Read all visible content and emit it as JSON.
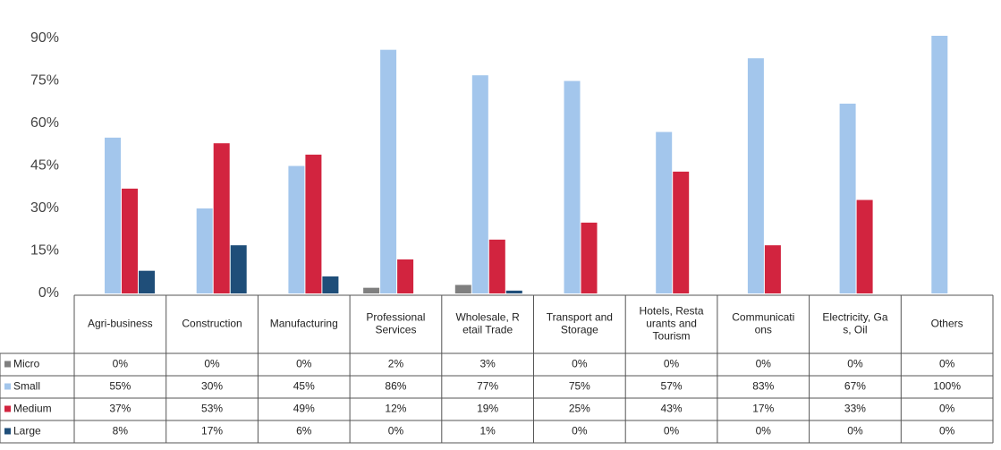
{
  "chart_data": {
    "type": "bar",
    "categories": [
      "Agri-business",
      "Construction",
      "Manufacturing",
      "Professional\nServices",
      "Wholesale, R\netail Trade",
      "Transport and\nStorage",
      "Hotels, Resta\nurants and\nTourism",
      "Communicati\nons",
      "Electricity, Ga\ns, Oil",
      "Others"
    ],
    "series": [
      {
        "name": "Micro",
        "color": "#7f7f7f",
        "values": [
          0,
          0,
          0,
          2,
          3,
          0,
          0,
          0,
          0,
          0
        ],
        "value_labels": [
          "0%",
          "0%",
          "0%",
          "2%",
          "3%",
          "0%",
          "0%",
          "0%",
          "0%",
          "0%"
        ]
      },
      {
        "name": "Small",
        "color": "#a3c6ec",
        "values": [
          55,
          30,
          45,
          86,
          77,
          75,
          57,
          83,
          67,
          100
        ],
        "value_labels": [
          "55%",
          "30%",
          "45%",
          "86%",
          "77%",
          "75%",
          "57%",
          "83%",
          "67%",
          "100%"
        ]
      },
      {
        "name": "Medium",
        "color": "#d2243f",
        "values": [
          37,
          53,
          49,
          12,
          19,
          25,
          43,
          17,
          33,
          0
        ],
        "value_labels": [
          "37%",
          "53%",
          "49%",
          "12%",
          "19%",
          "25%",
          "43%",
          "17%",
          "33%",
          "0%"
        ]
      },
      {
        "name": "Large",
        "color": "#1f4e79",
        "values": [
          8,
          17,
          6,
          0,
          1,
          0,
          0,
          0,
          0,
          0
        ],
        "value_labels": [
          "8%",
          "17%",
          "6%",
          "0%",
          "1%",
          "0%",
          "0%",
          "0%",
          "0%",
          "0%"
        ]
      }
    ],
    "ylim": [
      0,
      90
    ],
    "yticks": [
      {
        "value": 0,
        "label": "0%"
      },
      {
        "value": 15,
        "label": "15%"
      },
      {
        "value": 30,
        "label": "30%"
      },
      {
        "value": 45,
        "label": "45%"
      },
      {
        "value": 60,
        "label": "60%"
      },
      {
        "value": 75,
        "label": "75%"
      },
      {
        "value": 90,
        "label": "90%"
      }
    ],
    "grid": false
  }
}
